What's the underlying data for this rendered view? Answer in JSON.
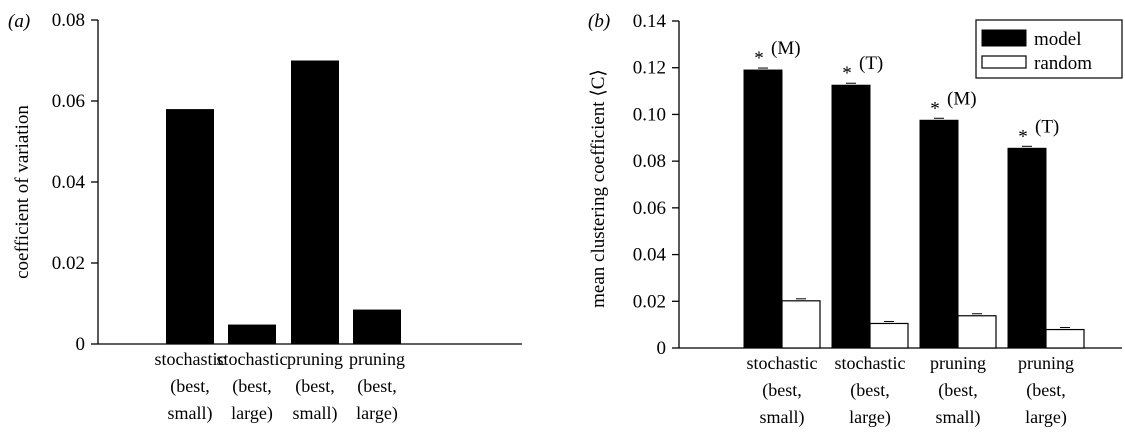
{
  "chart_data": [
    {
      "type": "bar",
      "panel_label": "(a)",
      "ylabel": "coefficient of variation",
      "ylim": [
        0,
        0.08
      ],
      "yticks": [
        "0",
        "0.02",
        "0.04",
        "0.06",
        "0.08"
      ],
      "categories": [
        [
          "stochastic",
          "(best,",
          "small)"
        ],
        [
          "stochastic",
          "(best,",
          "large)"
        ],
        [
          "pruning",
          "(best,",
          "small)"
        ],
        [
          "pruning",
          "(best,",
          "large)"
        ]
      ],
      "values": [
        0.058,
        0.0048,
        0.07,
        0.0085
      ]
    },
    {
      "type": "bar",
      "panel_label": "(b)",
      "ylabel": "mean clustering coefficient ⟨C⟩",
      "ylim": [
        0,
        0.14
      ],
      "yticks": [
        "0",
        "0.02",
        "0.04",
        "0.06",
        "0.08",
        "0.10",
        "0.12",
        "0.14"
      ],
      "categories": [
        [
          "stochastic",
          "(best,",
          "small)"
        ],
        [
          "stochastic",
          "(best,",
          "large)"
        ],
        [
          "pruning",
          "(best,",
          "small)"
        ],
        [
          "pruning",
          "(best,",
          "large)"
        ]
      ],
      "series": [
        {
          "name": "model",
          "color": "#000000",
          "values": [
            0.119,
            0.1125,
            0.0975,
            0.0855
          ]
        },
        {
          "name": "random",
          "color": "#ffffff",
          "values": [
            0.0202,
            0.0105,
            0.0138,
            0.0079
          ]
        }
      ],
      "annotations": [
        "*",
        "(M)",
        "(T)",
        "(M)",
        "(T)"
      ],
      "annotation_labels": [
        "(M)",
        "(T)",
        "(M)",
        "(T)"
      ],
      "legend_position": "top-right"
    }
  ]
}
